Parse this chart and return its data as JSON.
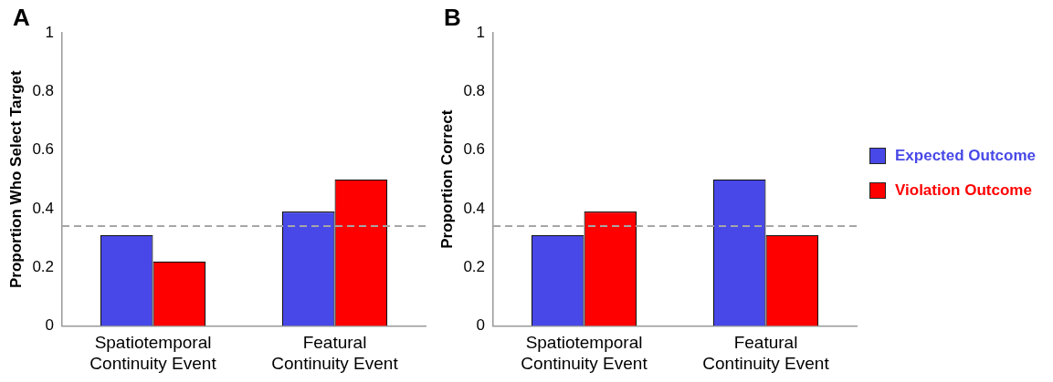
{
  "chart_data": [
    {
      "type": "bar",
      "title": "A",
      "ylabel": "Proportion Who Select Target",
      "categories": [
        "Spatiotemporal Continuity Event",
        "Featural Continuity Event"
      ],
      "series": [
        {
          "color": "#4848e8",
          "values": [
            0.31,
            0.39
          ]
        },
        {
          "color": "#ff0000",
          "values": [
            0.22,
            0.5
          ]
        }
      ],
      "ylim": [
        0,
        1
      ],
      "yticks": [
        0,
        0.2,
        0.4,
        0.6,
        0.8,
        1
      ],
      "grid": false,
      "ref_lines": [
        {
          "axis": "y",
          "value": 0.34,
          "color": "#a6a6a6",
          "line_style": "dashed"
        }
      ]
    },
    {
      "type": "bar",
      "title": "B",
      "ylabel": "Proportion Correct",
      "categories": [
        "Spatiotemporal Continuity Event",
        "Featural Continuity Event"
      ],
      "series": [
        {
          "name": "Expected Outcome",
          "color": "#4848e8",
          "values": [
            0.31,
            0.5
          ]
        },
        {
          "name": "Violation Outcome",
          "color": "#ff0000",
          "values": [
            0.39,
            0.31
          ]
        }
      ],
      "ylim": [
        0,
        1
      ],
      "yticks": [
        0,
        0.2,
        0.4,
        0.6,
        0.8,
        1
      ],
      "grid": false,
      "legend": "right",
      "ref_lines": [
        {
          "axis": "y",
          "value": 0.34,
          "color": "#a6a6a6",
          "line_style": "dashed"
        }
      ]
    }
  ]
}
